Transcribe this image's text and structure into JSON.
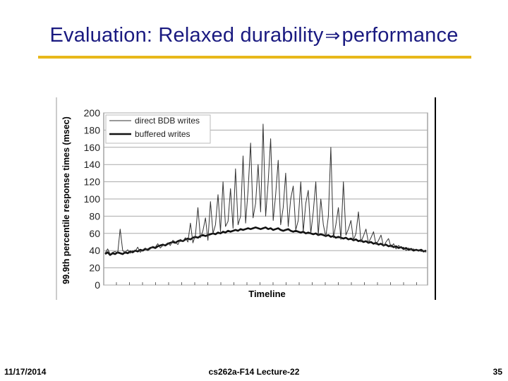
{
  "slide": {
    "title_before": "Evaluation: Relaxed durability",
    "title_arrow": "⇒",
    "title_after": "performance",
    "footer_date": "11/17/2014",
    "footer_course": "cs262a-F14 Lecture-22",
    "footer_page": "35",
    "accent_color": "#e8b81a",
    "title_color": "#1a1a80"
  },
  "chart_data": {
    "type": "line",
    "title": "",
    "xlabel": "Timeline",
    "ylabel": "99.9th percentile response times (msec)",
    "ylim": [
      0,
      200
    ],
    "yticks": [
      0,
      20,
      40,
      60,
      80,
      100,
      120,
      140,
      160,
      180,
      200
    ],
    "grid": true,
    "legend": "top-left",
    "series": [
      {
        "name": "direct BDB writes",
        "color": "#333333",
        "values": [
          37,
          42,
          36,
          38,
          39,
          37,
          65,
          40,
          38,
          41,
          37,
          40,
          39,
          44,
          38,
          41,
          43,
          40,
          42,
          45,
          44,
          48,
          43,
          46,
          47,
          49,
          46,
          52,
          50,
          47,
          53,
          51,
          55,
          50,
          72,
          49,
          58,
          90,
          55,
          63,
          78,
          52,
          97,
          60,
          70,
          105,
          62,
          120,
          68,
          74,
          112,
          66,
          135,
          70,
          80,
          150,
          72,
          110,
          165,
          78,
          95,
          140,
          85,
          187,
          80,
          120,
          170,
          75,
          105,
          145,
          70,
          90,
          130,
          68,
          100,
          115,
          64,
          75,
          120,
          62,
          95,
          110,
          60,
          85,
          120,
          58,
          100,
          70,
          56,
          80,
          160,
          55,
          70,
          90,
          53,
          120,
          58,
          65,
          75,
          52,
          60,
          85,
          50,
          57,
          65,
          49,
          55,
          62,
          47,
          52,
          58,
          45,
          50,
          54,
          44,
          48,
          42,
          46,
          43,
          44,
          40,
          43,
          41,
          42,
          40,
          41,
          39,
          40,
          38
        ]
      },
      {
        "name": "buffered writes",
        "color": "#111111",
        "values": [
          36,
          38,
          35,
          37,
          36,
          38,
          37,
          36,
          38,
          37,
          39,
          38,
          40,
          39,
          41,
          40,
          42,
          41,
          43,
          44,
          43,
          45,
          46,
          47,
          46,
          48,
          49,
          50,
          49,
          51,
          52,
          51,
          53,
          54,
          53,
          55,
          56,
          55,
          57,
          58,
          57,
          58,
          59,
          60,
          59,
          61,
          60,
          62,
          61,
          63,
          62,
          63,
          64,
          63,
          65,
          64,
          65,
          66,
          65,
          66,
          67,
          66,
          65,
          66,
          67,
          65,
          66,
          64,
          65,
          66,
          64,
          63,
          64,
          65,
          63,
          62,
          63,
          62,
          61,
          62,
          60,
          61,
          60,
          59,
          60,
          58,
          59,
          58,
          57,
          58,
          56,
          57,
          55,
          56,
          55,
          54,
          55,
          53,
          54,
          52,
          53,
          51,
          52,
          50,
          51,
          49,
          50,
          48,
          49,
          47,
          48,
          46,
          47,
          45,
          46,
          44,
          45,
          43,
          44,
          42,
          43,
          41,
          42,
          40,
          41,
          40,
          41,
          39,
          40
        ]
      }
    ]
  }
}
